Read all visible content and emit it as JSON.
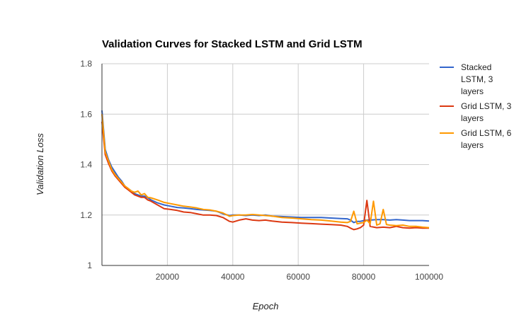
{
  "chart_data": {
    "type": "line",
    "title": "Validation Curves for Stacked LSTM and Grid LSTM",
    "xlabel": "Epoch",
    "ylabel": "Validation Loss",
    "xlim": [
      0,
      100000
    ],
    "ylim": [
      1.0,
      1.8
    ],
    "x_ticks": [
      {
        "value": 20000,
        "label": "20000"
      },
      {
        "value": 40000,
        "label": "40000"
      },
      {
        "value": 60000,
        "label": "60000"
      },
      {
        "value": 80000,
        "label": "80000"
      },
      {
        "value": 100000,
        "label": "100000"
      }
    ],
    "y_ticks": [
      {
        "value": 1.0,
        "label": "1"
      },
      {
        "value": 1.2,
        "label": "1.2"
      },
      {
        "value": 1.4,
        "label": "1.4"
      },
      {
        "value": 1.6,
        "label": "1.6"
      },
      {
        "value": 1.8,
        "label": "1.8"
      }
    ],
    "grid": true,
    "legend_position": "right",
    "colors": {
      "background": "#ffffff",
      "grid": "#cccccc",
      "axis": "#333333"
    },
    "series": [
      {
        "name": "Stacked LSTM, 3 layers",
        "legend_lines": [
          "Stacked",
          "LSTM, 3",
          "layers"
        ],
        "color": "#3366cc",
        "x": [
          0,
          1000,
          2000,
          3000,
          4000,
          5000,
          6000,
          7000,
          8000,
          9000,
          10000,
          11000,
          12000,
          13000,
          14000,
          15000,
          17000,
          19000,
          21000,
          23000,
          25000,
          27000,
          29000,
          31000,
          33000,
          35000,
          37000,
          39000,
          40000,
          42000,
          44000,
          46000,
          48000,
          50000,
          52000,
          55000,
          58000,
          61000,
          64000,
          67000,
          70000,
          73000,
          75000,
          76000,
          77000,
          78000,
          79000,
          80000,
          81000,
          82000,
          84000,
          86000,
          88000,
          90000,
          92000,
          94000,
          96000,
          98000,
          100000
        ],
        "y": [
          1.615,
          1.46,
          1.42,
          1.39,
          1.37,
          1.35,
          1.335,
          1.315,
          1.305,
          1.295,
          1.285,
          1.28,
          1.275,
          1.275,
          1.268,
          1.26,
          1.248,
          1.24,
          1.235,
          1.23,
          1.228,
          1.225,
          1.222,
          1.22,
          1.218,
          1.215,
          1.205,
          1.198,
          1.2,
          1.2,
          1.198,
          1.2,
          1.198,
          1.2,
          1.196,
          1.194,
          1.192,
          1.19,
          1.19,
          1.19,
          1.188,
          1.186,
          1.185,
          1.18,
          1.17,
          1.175,
          1.175,
          1.178,
          1.18,
          1.18,
          1.182,
          1.182,
          1.18,
          1.182,
          1.18,
          1.178,
          1.178,
          1.178,
          1.176
        ]
      },
      {
        "name": "Grid LSTM, 3 layers",
        "legend_lines": [
          "Grid LSTM, 3",
          "layers"
        ],
        "color": "#dc3912",
        "x": [
          0,
          1000,
          2000,
          3000,
          4000,
          5000,
          6000,
          7000,
          8000,
          9000,
          10000,
          11000,
          12000,
          13000,
          14000,
          15000,
          17000,
          19000,
          21000,
          23000,
          25000,
          27000,
          29000,
          31000,
          33000,
          35000,
          37000,
          39000,
          40000,
          42000,
          44000,
          46000,
          48000,
          50000,
          52000,
          55000,
          58000,
          61000,
          64000,
          67000,
          70000,
          73000,
          75000,
          76000,
          77000,
          78000,
          79000,
          80000,
          81000,
          82000,
          84000,
          86000,
          88000,
          90000,
          92000,
          94000,
          96000,
          98000,
          100000
        ],
        "y": [
          1.57,
          1.44,
          1.405,
          1.375,
          1.355,
          1.34,
          1.325,
          1.31,
          1.3,
          1.29,
          1.28,
          1.275,
          1.27,
          1.27,
          1.26,
          1.255,
          1.24,
          1.225,
          1.222,
          1.218,
          1.212,
          1.21,
          1.205,
          1.2,
          1.2,
          1.198,
          1.19,
          1.175,
          1.172,
          1.18,
          1.185,
          1.18,
          1.178,
          1.18,
          1.176,
          1.172,
          1.17,
          1.168,
          1.166,
          1.164,
          1.162,
          1.16,
          1.155,
          1.148,
          1.142,
          1.145,
          1.15,
          1.16,
          1.258,
          1.155,
          1.15,
          1.152,
          1.15,
          1.155,
          1.15,
          1.148,
          1.15,
          1.148,
          1.148
        ]
      },
      {
        "name": "Grid LSTM, 6 layers",
        "legend_lines": [
          "Grid LSTM, 6",
          "layers"
        ],
        "color": "#ff9900",
        "x": [
          0,
          1000,
          2000,
          3000,
          4000,
          5000,
          6000,
          7000,
          8000,
          9000,
          10000,
          11000,
          12000,
          13000,
          14000,
          15000,
          17000,
          19000,
          21000,
          23000,
          25000,
          27000,
          29000,
          31000,
          33000,
          35000,
          37000,
          39000,
          40000,
          42000,
          44000,
          46000,
          48000,
          50000,
          52000,
          55000,
          58000,
          61000,
          64000,
          67000,
          70000,
          73000,
          75000,
          76000,
          77000,
          78000,
          79000,
          80000,
          81000,
          82000,
          83000,
          84000,
          85000,
          86000,
          87000,
          88000,
          90000,
          92000,
          94000,
          96000,
          98000,
          100000
        ],
        "y": [
          1.6,
          1.45,
          1.415,
          1.38,
          1.36,
          1.345,
          1.33,
          1.315,
          1.305,
          1.295,
          1.29,
          1.295,
          1.28,
          1.285,
          1.27,
          1.268,
          1.26,
          1.25,
          1.245,
          1.24,
          1.235,
          1.232,
          1.228,
          1.222,
          1.22,
          1.215,
          1.208,
          1.195,
          1.198,
          1.2,
          1.2,
          1.202,
          1.2,
          1.198,
          1.196,
          1.19,
          1.188,
          1.185,
          1.182,
          1.18,
          1.176,
          1.172,
          1.17,
          1.175,
          1.215,
          1.165,
          1.168,
          1.17,
          1.18,
          1.165,
          1.255,
          1.16,
          1.165,
          1.222,
          1.162,
          1.16,
          1.158,
          1.16,
          1.155,
          1.155,
          1.152,
          1.15
        ]
      }
    ]
  }
}
